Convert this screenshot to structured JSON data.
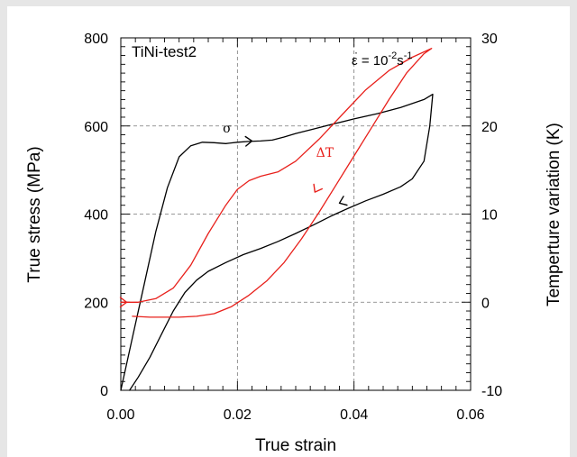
{
  "chart_data": {
    "type": "line",
    "title": "TiNi-test2",
    "strain_rate_label": {
      "prefix": "ε = 10",
      "exp1": "-2",
      "mid": "s",
      "exp2": "-1"
    },
    "xlabel": "True strain",
    "ylabel": "True stress (MPa)",
    "y2label": "Temperture variation (K)",
    "xlim": [
      0,
      0.06
    ],
    "ylim": [
      0,
      800
    ],
    "y2lim": [
      -10,
      30
    ],
    "x_ticks": [
      0,
      0.02,
      0.04,
      0.06
    ],
    "x_tick_labels": [
      "0.00",
      "0.02",
      "0.04",
      "0.06"
    ],
    "y_ticks": [
      0,
      200,
      400,
      600,
      800
    ],
    "y_tick_labels": [
      "0",
      "200",
      "400",
      "600",
      "800"
    ],
    "y2_ticks": [
      -10,
      0,
      10,
      20,
      30
    ],
    "y2_tick_labels": [
      "-10",
      "0",
      "10",
      "20",
      "30"
    ],
    "grid": true,
    "series": [
      {
        "name": "σ",
        "axis": "left",
        "color": "#000000",
        "points": [
          [
            0.0,
            0
          ],
          [
            0.002,
            120
          ],
          [
            0.004,
            240
          ],
          [
            0.006,
            360
          ],
          [
            0.008,
            460
          ],
          [
            0.01,
            530
          ],
          [
            0.012,
            555
          ],
          [
            0.014,
            563
          ],
          [
            0.016,
            562
          ],
          [
            0.018,
            560
          ],
          [
            0.02,
            563
          ],
          [
            0.022,
            565
          ],
          [
            0.024,
            566
          ],
          [
            0.026,
            568
          ],
          [
            0.028,
            575
          ],
          [
            0.03,
            583
          ],
          [
            0.033,
            593
          ],
          [
            0.036,
            603
          ],
          [
            0.04,
            616
          ],
          [
            0.044,
            628
          ],
          [
            0.048,
            642
          ],
          [
            0.052,
            660
          ],
          [
            0.0535,
            672
          ],
          [
            0.053,
            600
          ],
          [
            0.052,
            520
          ],
          [
            0.05,
            480
          ],
          [
            0.048,
            462
          ],
          [
            0.045,
            445
          ],
          [
            0.042,
            430
          ],
          [
            0.039,
            413
          ],
          [
            0.036,
            395
          ],
          [
            0.033,
            375
          ],
          [
            0.03,
            356
          ],
          [
            0.027,
            338
          ],
          [
            0.024,
            322
          ],
          [
            0.021,
            308
          ],
          [
            0.018,
            290
          ],
          [
            0.015,
            270
          ],
          [
            0.013,
            250
          ],
          [
            0.011,
            222
          ],
          [
            0.009,
            180
          ],
          [
            0.007,
            128
          ],
          [
            0.005,
            75
          ],
          [
            0.003,
            30
          ],
          [
            0.0015,
            0
          ]
        ]
      },
      {
        "name": "ΔT",
        "axis": "right",
        "color": "#e8201b",
        "points": [
          [
            0.0,
            0.0
          ],
          [
            0.003,
            0.0
          ],
          [
            0.006,
            0.4
          ],
          [
            0.009,
            1.6
          ],
          [
            0.012,
            4.2
          ],
          [
            0.015,
            7.8
          ],
          [
            0.018,
            11.0
          ],
          [
            0.02,
            12.8
          ],
          [
            0.022,
            13.8
          ],
          [
            0.024,
            14.3
          ],
          [
            0.027,
            14.8
          ],
          [
            0.03,
            16.0
          ],
          [
            0.034,
            18.5
          ],
          [
            0.038,
            21.3
          ],
          [
            0.042,
            24.1
          ],
          [
            0.046,
            26.3
          ],
          [
            0.05,
            27.8
          ],
          [
            0.0533,
            28.8
          ],
          [
            0.052,
            28.2
          ],
          [
            0.049,
            26.0
          ],
          [
            0.046,
            23.0
          ],
          [
            0.043,
            19.8
          ],
          [
            0.04,
            16.6
          ],
          [
            0.037,
            13.4
          ],
          [
            0.034,
            10.2
          ],
          [
            0.031,
            7.2
          ],
          [
            0.028,
            4.5
          ],
          [
            0.025,
            2.4
          ],
          [
            0.022,
            0.8
          ],
          [
            0.019,
            -0.5
          ],
          [
            0.016,
            -1.3
          ],
          [
            0.013,
            -1.6
          ],
          [
            0.01,
            -1.7
          ],
          [
            0.005,
            -1.7
          ],
          [
            0.002,
            -1.6
          ]
        ]
      }
    ],
    "annotations": [
      {
        "text": "σ",
        "x": 0.0175,
        "y": 585,
        "axis": "left",
        "color": "#000000"
      },
      {
        "text": "ΔT",
        "x": 0.0335,
        "y": 16.5,
        "axis": "right",
        "color": "#e8201b"
      }
    ],
    "direction_arrows": [
      {
        "series": "σ",
        "x": 0.0225,
        "y": 566,
        "axis": "left",
        "toward_x": 1,
        "toward_y": 0.05
      },
      {
        "series": "σ",
        "x": 0.0375,
        "y": 425,
        "axis": "left",
        "toward_x": -1,
        "toward_y": -0.4
      },
      {
        "series": "ΔT",
        "x": 0.0333,
        "y": 12.5,
        "axis": "right",
        "toward_x": -0.55,
        "toward_y": -1
      },
      {
        "series": "ΔT",
        "x": 0.001,
        "y": 0.0,
        "axis": "right",
        "toward_x": 1,
        "toward_y": 0
      }
    ]
  }
}
